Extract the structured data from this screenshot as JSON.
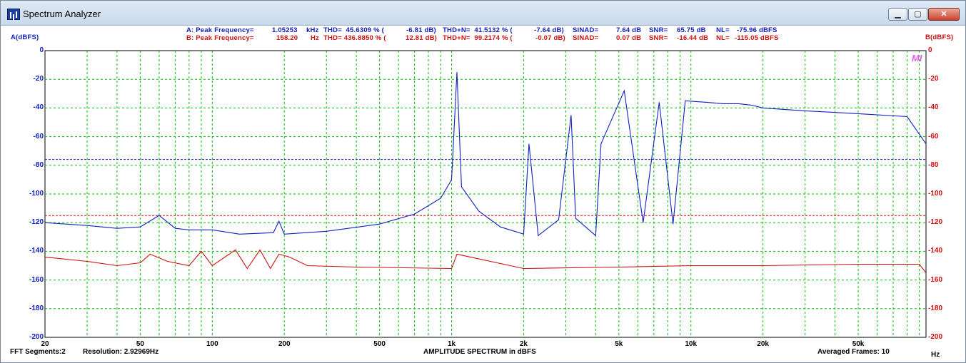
{
  "window": {
    "title": "Spectrum Analyzer",
    "icon": "spectrum-bars-icon",
    "controls": {
      "minimize": "minimize-icon",
      "maximize": "maximize-icon",
      "close": "close-icon"
    }
  },
  "header": {
    "left_axis_label": "A(dBFS)",
    "right_axis_label": "B(dBFS)",
    "row_a": {
      "prefix": "A: Peak Frequency=",
      "peak_value": "1.05253",
      "peak_unit": "kHz",
      "thd": "THD=  45.6309 % (",
      "thd_db": "-6.81 dB)",
      "thdn": "THD+N=  41.5132 % (",
      "thdn_db": "-7.64 dB)",
      "sinad": "SINAD=",
      "sinad_val": "7.64 dB",
      "snr": "SNR=",
      "snr_val": "65.75 dB",
      "nl": "NL=",
      "nl_val": "-75.96 dBFS"
    },
    "row_b": {
      "prefix": "B: Peak Frequency=",
      "peak_value": "158.20",
      "peak_unit": "Hz",
      "thd": "THD= 436.8850 % (",
      "thd_db": "12.81 dB)",
      "thdn": "THD+N=  99.2174 % (",
      "thdn_db": "-0.07 dB)",
      "sinad": "SINAD=",
      "sinad_val": "0.07 dB",
      "snr": "SNR=",
      "snr_val": "-16.44 dB",
      "nl": "NL=",
      "nl_val": "-115.05 dBFS"
    }
  },
  "y_ticks_left": [
    "0",
    "-20",
    "-40",
    "-60",
    "-80",
    "-100",
    "-120",
    "-140",
    "-160",
    "-180",
    "-200"
  ],
  "y_ticks_right": [
    "0",
    "-20",
    "-40",
    "-60",
    "-80",
    "-100",
    "-120",
    "-140",
    "-160",
    "-180",
    "-200"
  ],
  "x_ticks": [
    "20",
    "50",
    "100",
    "200",
    "500",
    "1k",
    "2k",
    "5k",
    "10k",
    "20k",
    "50k"
  ],
  "footer": {
    "segments": "FFT Segments:2",
    "resolution": "Resolution: 2.92969Hz",
    "title": "AMPLITUDE SPECTRUM in dBFS",
    "frames": "Averaged Frames: 10",
    "unit": "Hz"
  },
  "logo": "MI",
  "colors": {
    "channel_a": "#1020c0",
    "channel_b": "#d01010",
    "grid": "#00c000",
    "title_bar": "#c9d9ec"
  },
  "chart_data": {
    "type": "line",
    "title": "AMPLITUDE SPECTRUM in dBFS",
    "xlabel": "Hz",
    "ylabel": "A(dBFS)",
    "x_scale": "log",
    "xlim": [
      20,
      96000
    ],
    "ylim": [
      -200,
      0
    ],
    "grid": true,
    "series": [
      {
        "name": "A",
        "noise_level_dbfs": -75.96,
        "points": [
          [
            20,
            -120
          ],
          [
            30,
            -122
          ],
          [
            40,
            -124
          ],
          [
            50,
            -123
          ],
          [
            60,
            -115
          ],
          [
            70,
            -124
          ],
          [
            80,
            -125
          ],
          [
            100,
            -125
          ],
          [
            130,
            -128
          ],
          [
            180,
            -127
          ],
          [
            190,
            -119
          ],
          [
            200,
            -128
          ],
          [
            300,
            -126
          ],
          [
            500,
            -121
          ],
          [
            700,
            -114
          ],
          [
            900,
            -103
          ],
          [
            1000,
            -90
          ],
          [
            1052.53,
            -15
          ],
          [
            1100,
            -95
          ],
          [
            1300,
            -112
          ],
          [
            1600,
            -123
          ],
          [
            2000,
            -128
          ],
          [
            2105,
            -65
          ],
          [
            2300,
            -129
          ],
          [
            2800,
            -118
          ],
          [
            3157.6,
            -45
          ],
          [
            3300,
            -117
          ],
          [
            4000,
            -129
          ],
          [
            4210,
            -65
          ],
          [
            5262.6,
            -28
          ],
          [
            6315,
            -120
          ],
          [
            7367.7,
            -36
          ],
          [
            8420,
            -121
          ],
          [
            9472.8,
            -35
          ],
          [
            11578,
            -36
          ],
          [
            13683,
            -37
          ],
          [
            15788,
            -37
          ],
          [
            17893,
            -38
          ],
          [
            20000,
            -40
          ],
          [
            30000,
            -42
          ],
          [
            50000,
            -44
          ],
          [
            80000,
            -46
          ],
          [
            96000,
            -65
          ]
        ]
      },
      {
        "name": "B",
        "noise_level_dbfs": -115.05,
        "points": [
          [
            20,
            -144
          ],
          [
            30,
            -147
          ],
          [
            40,
            -150
          ],
          [
            50,
            -148
          ],
          [
            55,
            -142
          ],
          [
            65,
            -147
          ],
          [
            80,
            -150
          ],
          [
            90,
            -140
          ],
          [
            100,
            -150
          ],
          [
            125,
            -139
          ],
          [
            140,
            -152
          ],
          [
            158.2,
            -139
          ],
          [
            175,
            -152
          ],
          [
            190,
            -142
          ],
          [
            210,
            -144
          ],
          [
            250,
            -150
          ],
          [
            400,
            -151
          ],
          [
            1000,
            -152
          ],
          [
            1052.53,
            -142
          ],
          [
            2000,
            -152
          ],
          [
            5000,
            -151
          ],
          [
            10000,
            -150
          ],
          [
            20000,
            -150
          ],
          [
            50000,
            -149
          ],
          [
            90000,
            -149
          ],
          [
            96000,
            -155
          ]
        ]
      }
    ]
  }
}
